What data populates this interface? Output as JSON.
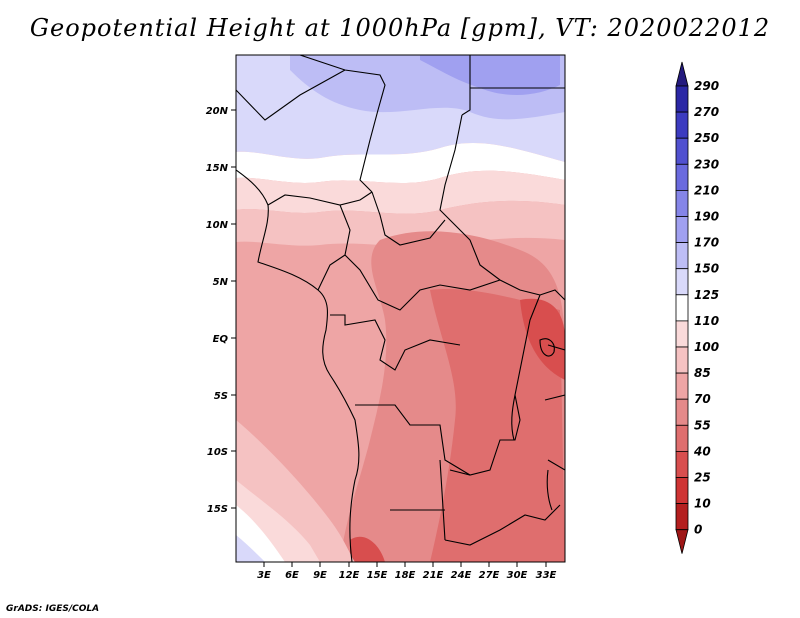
{
  "title": "Geopotential Height at 1000hPa [gpm], VT: 2020022012",
  "footer": "GrADS: IGES/COLA",
  "map": {
    "lat_labels": [
      "20N",
      "15N",
      "10N",
      "5N",
      "EQ",
      "5S",
      "10S",
      "15S"
    ],
    "lon_labels": [
      "3E",
      "6E",
      "9E",
      "12E",
      "15E",
      "18E",
      "21E",
      "24E",
      "27E",
      "30E",
      "33E"
    ]
  },
  "colorbar": {
    "labels": [
      "290",
      "270",
      "250",
      "230",
      "210",
      "190",
      "170",
      "150",
      "125",
      "110",
      "100",
      "85",
      "70",
      "55",
      "40",
      "25",
      "10",
      "0"
    ],
    "colors": [
      "#241a7e",
      "#2b27a5",
      "#3c3bc0",
      "#5151d0",
      "#6a6ade",
      "#8585e8",
      "#a0a0f0",
      "#bdbdf5",
      "#d9d9fa",
      "#ffffff",
      "#fadada",
      "#f5c2c2",
      "#eea5a5",
      "#e58a8a",
      "#df6e6e",
      "#d84e4e",
      "#cf3434",
      "#b41f1f",
      "#9e1616"
    ]
  }
}
